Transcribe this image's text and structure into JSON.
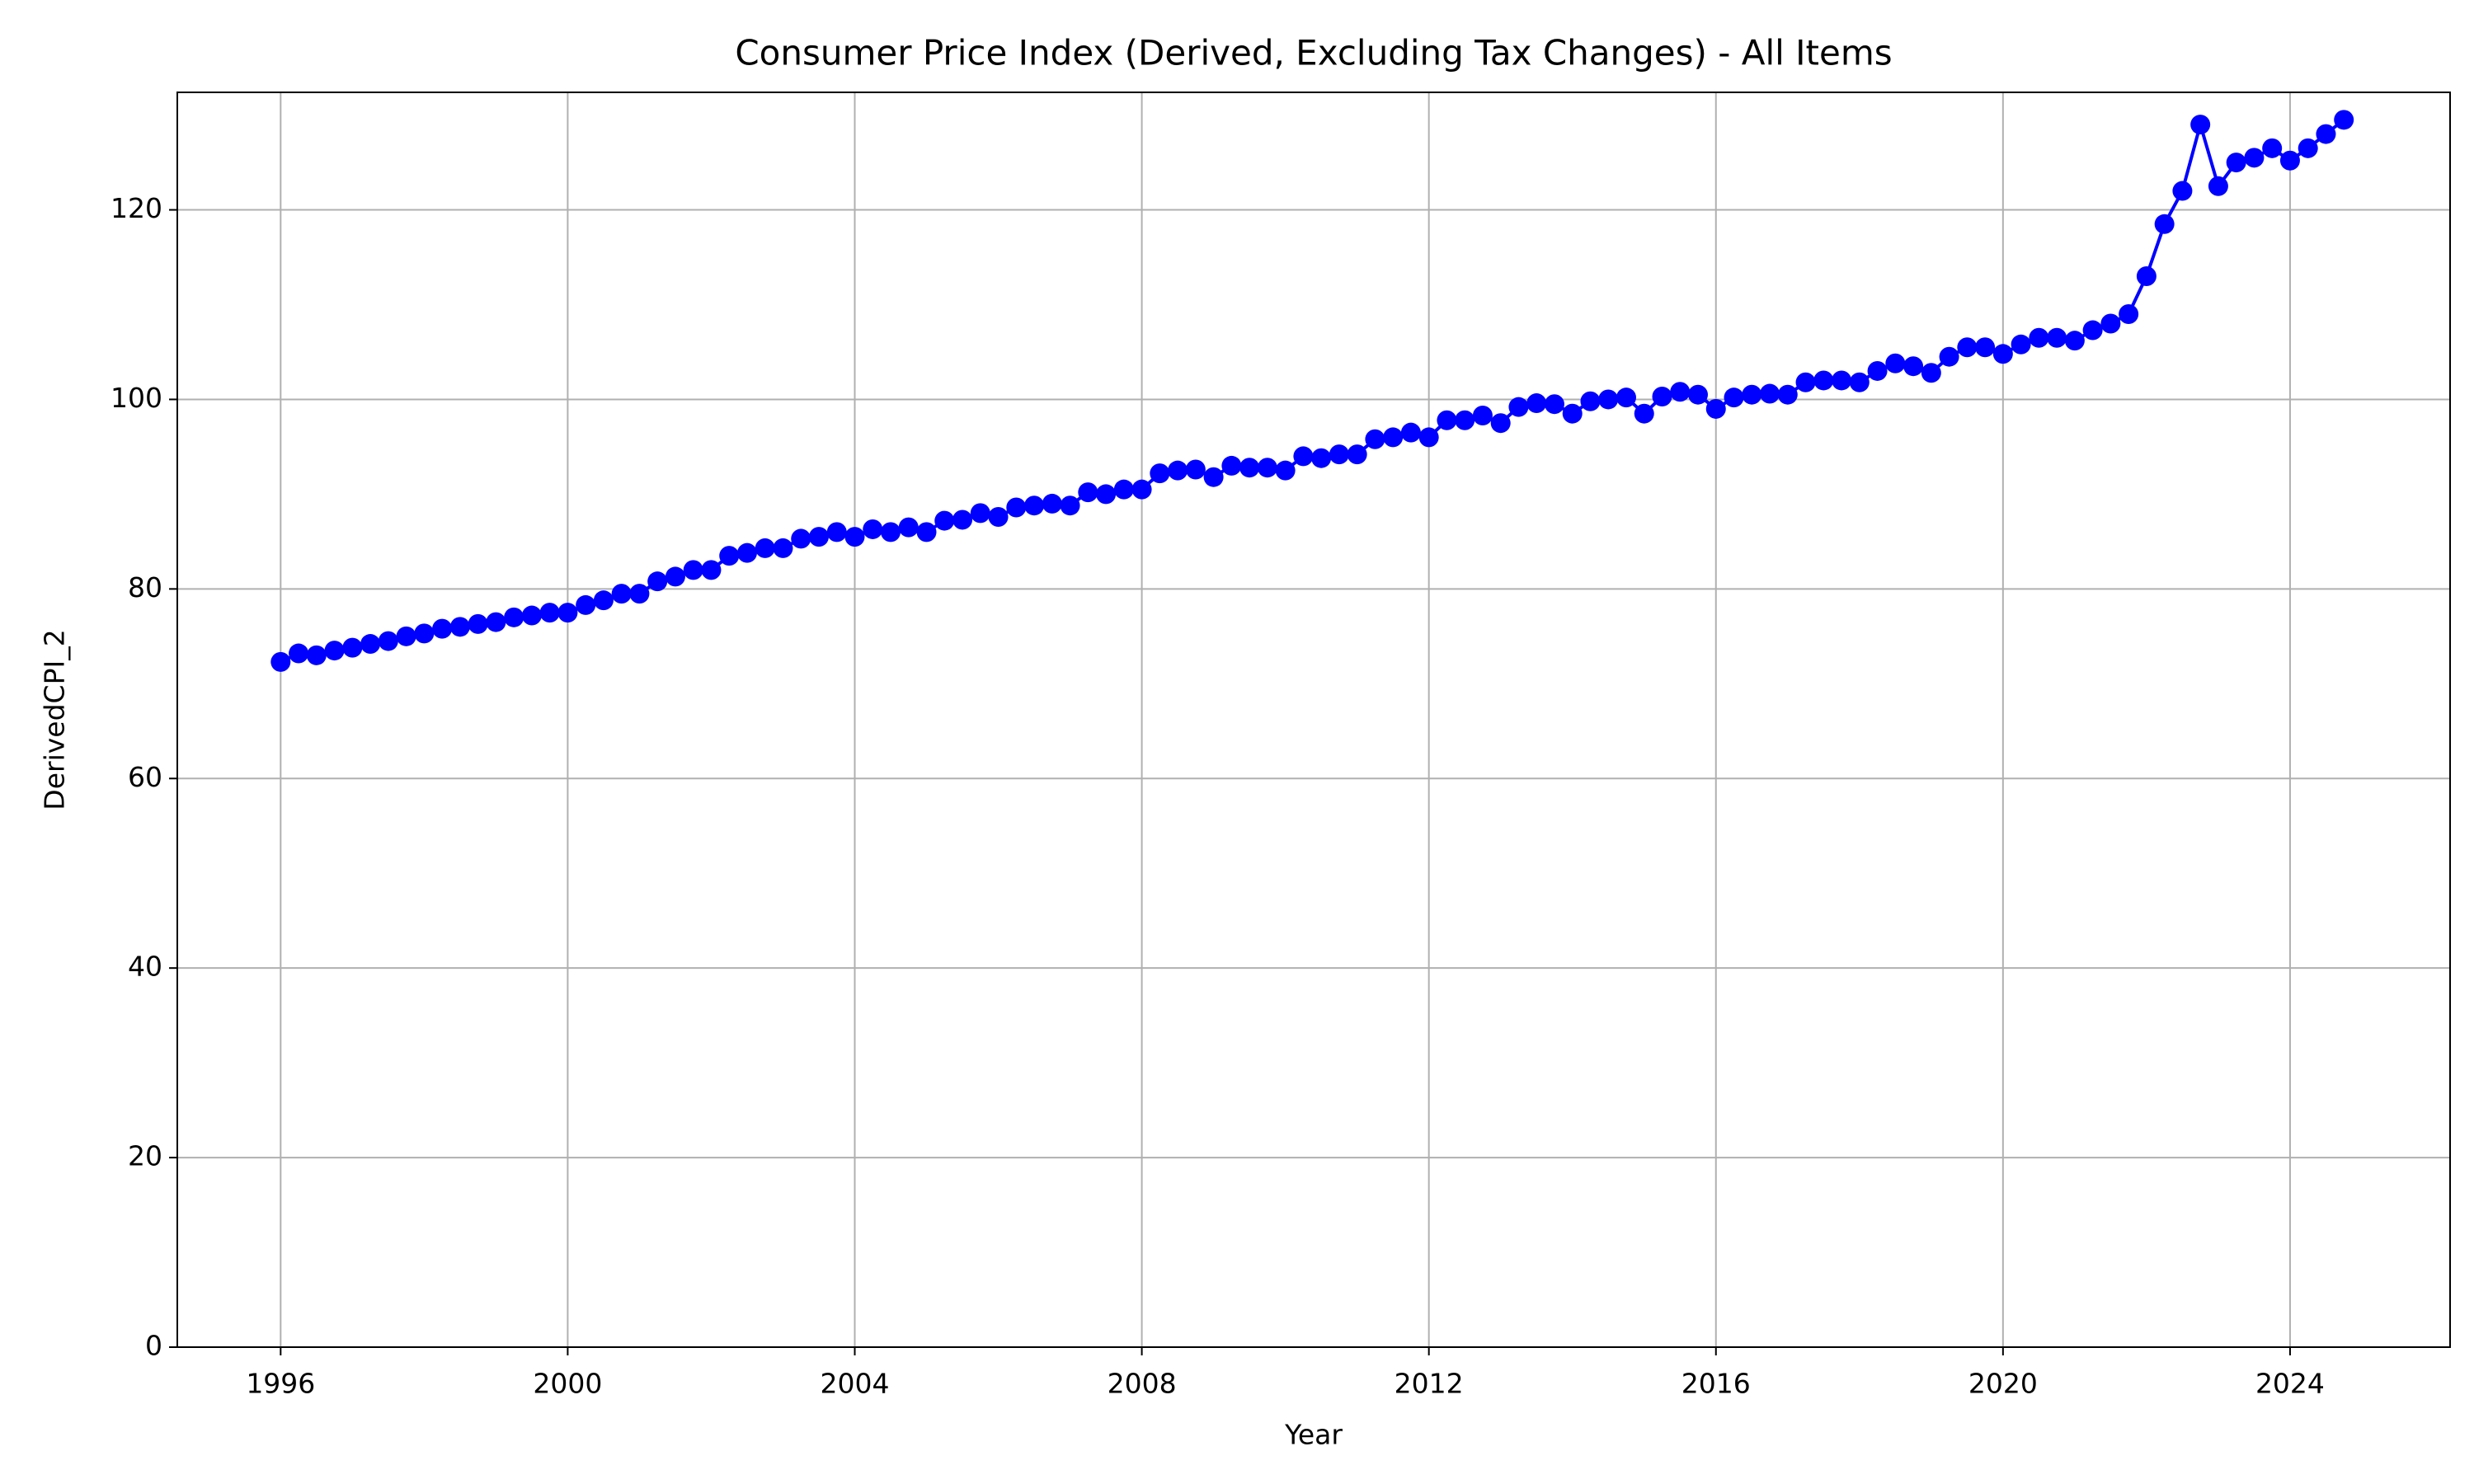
{
  "chart_data": {
    "type": "line",
    "title": "Consumer Price Index (Derived, Excluding Tax Changes) - All Items",
    "x_label": "Year",
    "y_label": "DerivedCPI_2",
    "color": "#0000ff",
    "grid": true,
    "xlim": [
      1994.56,
      2026.23
    ],
    "xticks": [
      1996,
      2000,
      2004,
      2008,
      2012,
      2016,
      2020,
      2024
    ],
    "ylim": [
      0,
      132.4
    ],
    "yticks": [
      0,
      20,
      40,
      60,
      80,
      100,
      120
    ],
    "x": [
      1996,
      1996.25,
      1996.5,
      1996.75,
      1997,
      1997.25,
      1997.5,
      1997.75,
      1998,
      1998.25,
      1998.5,
      1998.75,
      1999,
      1999.25,
      1999.5,
      1999.75,
      2000,
      2000.25,
      2000.5,
      2000.75,
      2001,
      2001.25,
      2001.5,
      2001.75,
      2002,
      2002.25,
      2002.5,
      2002.75,
      2003,
      2003.25,
      2003.5,
      2003.75,
      2004,
      2004.25,
      2004.5,
      2004.75,
      2005,
      2005.25,
      2005.5,
      2005.75,
      2006,
      2006.25,
      2006.5,
      2006.75,
      2007,
      2007.25,
      2007.5,
      2007.75,
      2008,
      2008.25,
      2008.5,
      2008.75,
      2009,
      2009.25,
      2009.5,
      2009.75,
      2010,
      2010.25,
      2010.5,
      2010.75,
      2011,
      2011.25,
      2011.5,
      2011.75,
      2012,
      2012.25,
      2012.5,
      2012.75,
      2013,
      2013.25,
      2013.5,
      2013.75,
      2014,
      2014.25,
      2014.5,
      2014.75,
      2015,
      2015.25,
      2015.5,
      2015.75,
      2016,
      2016.25,
      2016.5,
      2016.75,
      2017,
      2017.25,
      2017.5,
      2017.75,
      2018,
      2018.25,
      2018.5,
      2018.75,
      2019,
      2019.25,
      2019.5,
      2019.75,
      2020,
      2020.25,
      2020.5,
      2020.75,
      2021,
      2021.25,
      2021.5,
      2021.75,
      2022,
      2022.25,
      2022.5,
      2022.75,
      2023,
      2023.25,
      2023.5,
      2023.75,
      2024,
      2024.25,
      2024.5,
      2024.75
    ],
    "values": [
      72.3,
      73.2,
      73.0,
      73.5,
      73.8,
      74.2,
      74.5,
      75.0,
      75.3,
      75.8,
      76.0,
      76.3,
      76.5,
      77.0,
      77.2,
      77.5,
      77.5,
      78.3,
      78.8,
      79.5,
      79.5,
      80.8,
      81.3,
      82.0,
      82.0,
      83.5,
      83.8,
      84.3,
      84.3,
      85.3,
      85.5,
      86.0,
      85.5,
      86.3,
      86.0,
      86.5,
      86.0,
      87.2,
      87.3,
      88.0,
      87.6,
      88.6,
      88.8,
      89.0,
      88.8,
      90.2,
      90.0,
      90.5,
      90.5,
      92.2,
      92.5,
      92.6,
      91.8,
      93.0,
      92.8,
      92.8,
      92.5,
      94.0,
      93.8,
      94.2,
      94.2,
      95.8,
      96.0,
      96.5,
      96.0,
      97.8,
      97.8,
      98.3,
      97.5,
      99.2,
      99.6,
      99.5,
      98.5,
      99.8,
      100.0,
      100.2,
      98.5,
      100.3,
      100.8,
      100.5,
      99.0,
      100.2,
      100.5,
      100.6,
      100.5,
      101.8,
      102.0,
      102.0,
      101.8,
      103.0,
      103.8,
      103.5,
      102.8,
      104.5,
      105.5,
      105.5,
      104.8,
      105.8,
      106.5,
      106.5,
      106.2,
      107.3,
      108.0,
      109.0,
      113.0,
      118.5,
      122.0,
      129.0,
      122.5,
      125.0,
      125.5,
      126.5,
      125.2,
      126.5,
      128.0,
      129.5
    ]
  }
}
